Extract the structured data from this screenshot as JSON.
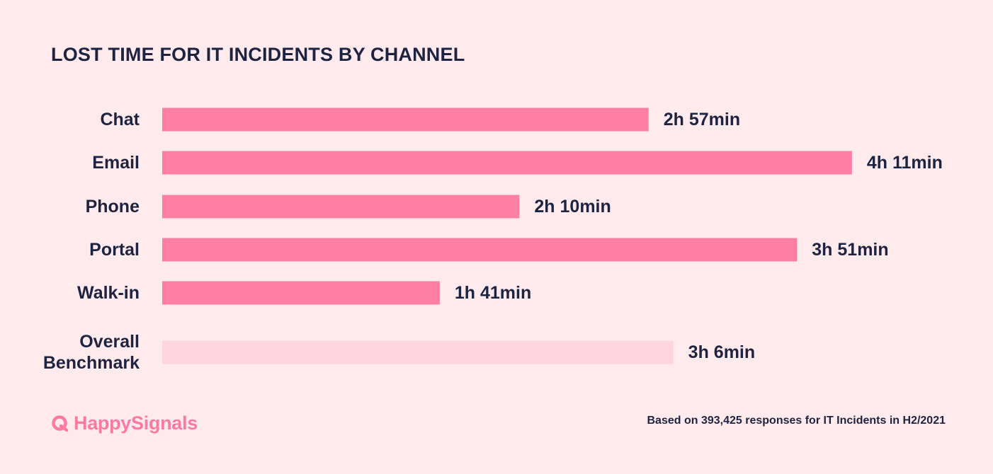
{
  "title": "LOST TIME FOR IT INCIDENTS BY CHANNEL",
  "footnote": "Based on 393,425 responses for IT Incidents in H2/2021",
  "logo": {
    "text": "HappySignals",
    "icon": "happysignals-logo-icon"
  },
  "colors": {
    "background": "#ffeaee",
    "bar": "#ff7fa3",
    "benchmark_bar": "#ffd6df",
    "text": "#1e2340",
    "brand": "#ff7aa2"
  },
  "chart_data": {
    "type": "bar",
    "orientation": "horizontal",
    "title": "LOST TIME FOR IT INCIDENTS BY CHANNEL",
    "value_unit": "minutes",
    "categories": [
      [
        "Chat"
      ],
      [
        "Email"
      ],
      [
        "Phone"
      ],
      [
        "Portal"
      ],
      [
        "Walk-in"
      ],
      [
        "Overall",
        "Benchmark"
      ]
    ],
    "values": [
      177,
      251,
      130,
      231,
      101,
      186
    ],
    "value_labels": [
      "2h 57min",
      "4h 11min",
      "2h 10min",
      "3h 51min",
      "1h 41min",
      "3h 6min"
    ],
    "highlight": [
      false,
      false,
      false,
      false,
      false,
      true
    ],
    "grid": false,
    "legend": "none"
  }
}
